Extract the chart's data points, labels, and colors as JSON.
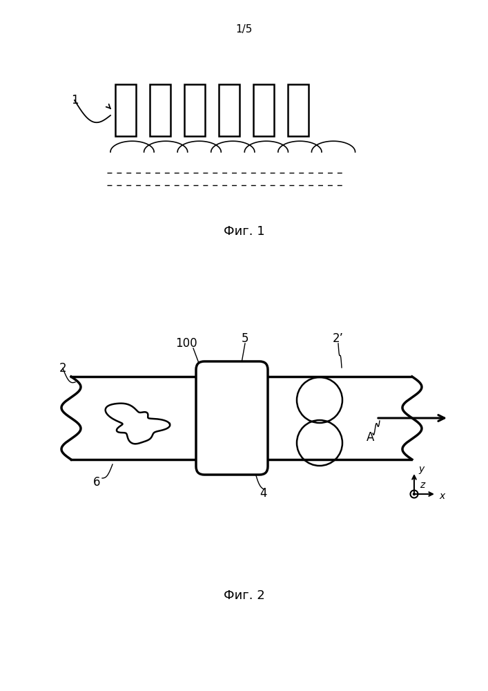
{
  "page_label": "1/5",
  "fig1_label": "Фиг. 1",
  "fig2_label": "Фиг. 2",
  "bg_color": "#ffffff",
  "line_color": "#000000",
  "label_1": "1",
  "label_2": "2",
  "label_2prime": "2’",
  "label_4": "4",
  "label_5": "5",
  "label_6": "6",
  "label_100": "100",
  "label_A": "A",
  "label_y": "y",
  "label_z": "z",
  "label_x": "x"
}
